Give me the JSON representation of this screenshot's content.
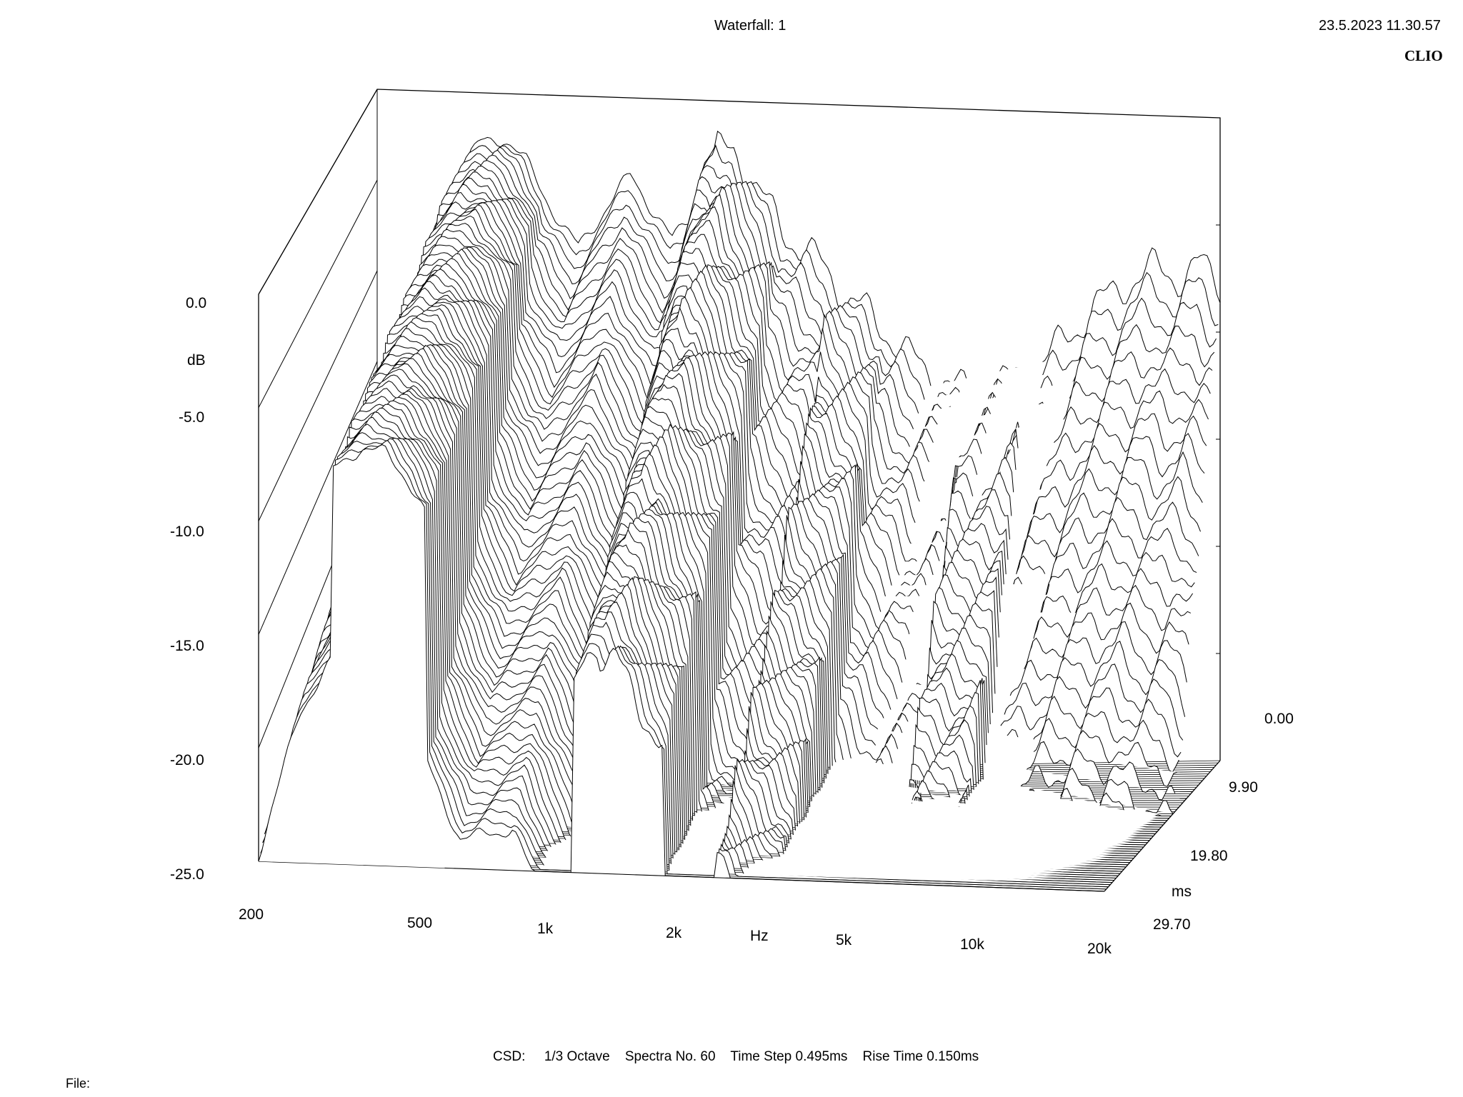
{
  "header": {
    "title": "Waterfall: 1",
    "datetime": "23.5.2023 11.30.57",
    "brand": "CLIO"
  },
  "footer": {
    "csd_label": "CSD:",
    "smoothing": "1/3 Octave",
    "spectra": "Spectra No. 60",
    "time_step": "Time Step 0.495ms",
    "rise_time": "Rise Time 0.150ms",
    "file_label": "File:"
  },
  "colors": {
    "background": "#ffffff",
    "ink": "#000000"
  },
  "chart_data": {
    "type": "waterfall",
    "title": "Waterfall: 1",
    "y_axis": {
      "label": "dB",
      "ticks": [
        "0.0",
        "-5.0",
        "-10.0",
        "-15.0",
        "-20.0",
        "-25.0"
      ],
      "range": [
        -25,
        0
      ]
    },
    "x_axis": {
      "label": "Hz",
      "scale": "log",
      "ticks": [
        "200",
        "500",
        "1k",
        "2k",
        "5k",
        "10k",
        "20k"
      ],
      "range": [
        200,
        20000
      ]
    },
    "z_axis": {
      "label": "ms",
      "ticks": [
        "0.00",
        "9.90",
        "19.80",
        "29.70"
      ],
      "range": [
        0,
        29.7
      ]
    },
    "spectra_count": 60,
    "time_step_ms": 0.495,
    "rise_time_ms": 0.15,
    "smoothing": "1/3 Octave",
    "reference_spectrum": {
      "description_freq_hz": [
        200,
        250,
        300,
        350,
        400,
        450,
        500,
        550,
        600,
        700,
        800,
        900,
        1000,
        1100,
        1200,
        1400,
        1600,
        1800,
        2000,
        2300,
        2600,
        3000,
        3500,
        4000,
        4500,
        5000,
        6000,
        7000,
        8000,
        9000,
        10000,
        12000,
        14000,
        16000,
        18000,
        20000
      ],
      "db": [
        -14.5,
        -6,
        -2,
        -0.5,
        -0.3,
        -1.2,
        -2.6,
        -3.8,
        -4.6,
        -3.1,
        -1.8,
        -3.2,
        -4.4,
        -3.5,
        -1.2,
        -0.8,
        -2.6,
        -3.8,
        -4.8,
        -5.5,
        -6.8,
        -7.5,
        -8.8,
        -9.6,
        -10.1,
        -10.5,
        -10.2,
        -9.8,
        -9.0,
        -8.2,
        -7.3,
        -6.4,
        -5.8,
        -6.2,
        -5.7,
        -6.5
      ]
    }
  }
}
